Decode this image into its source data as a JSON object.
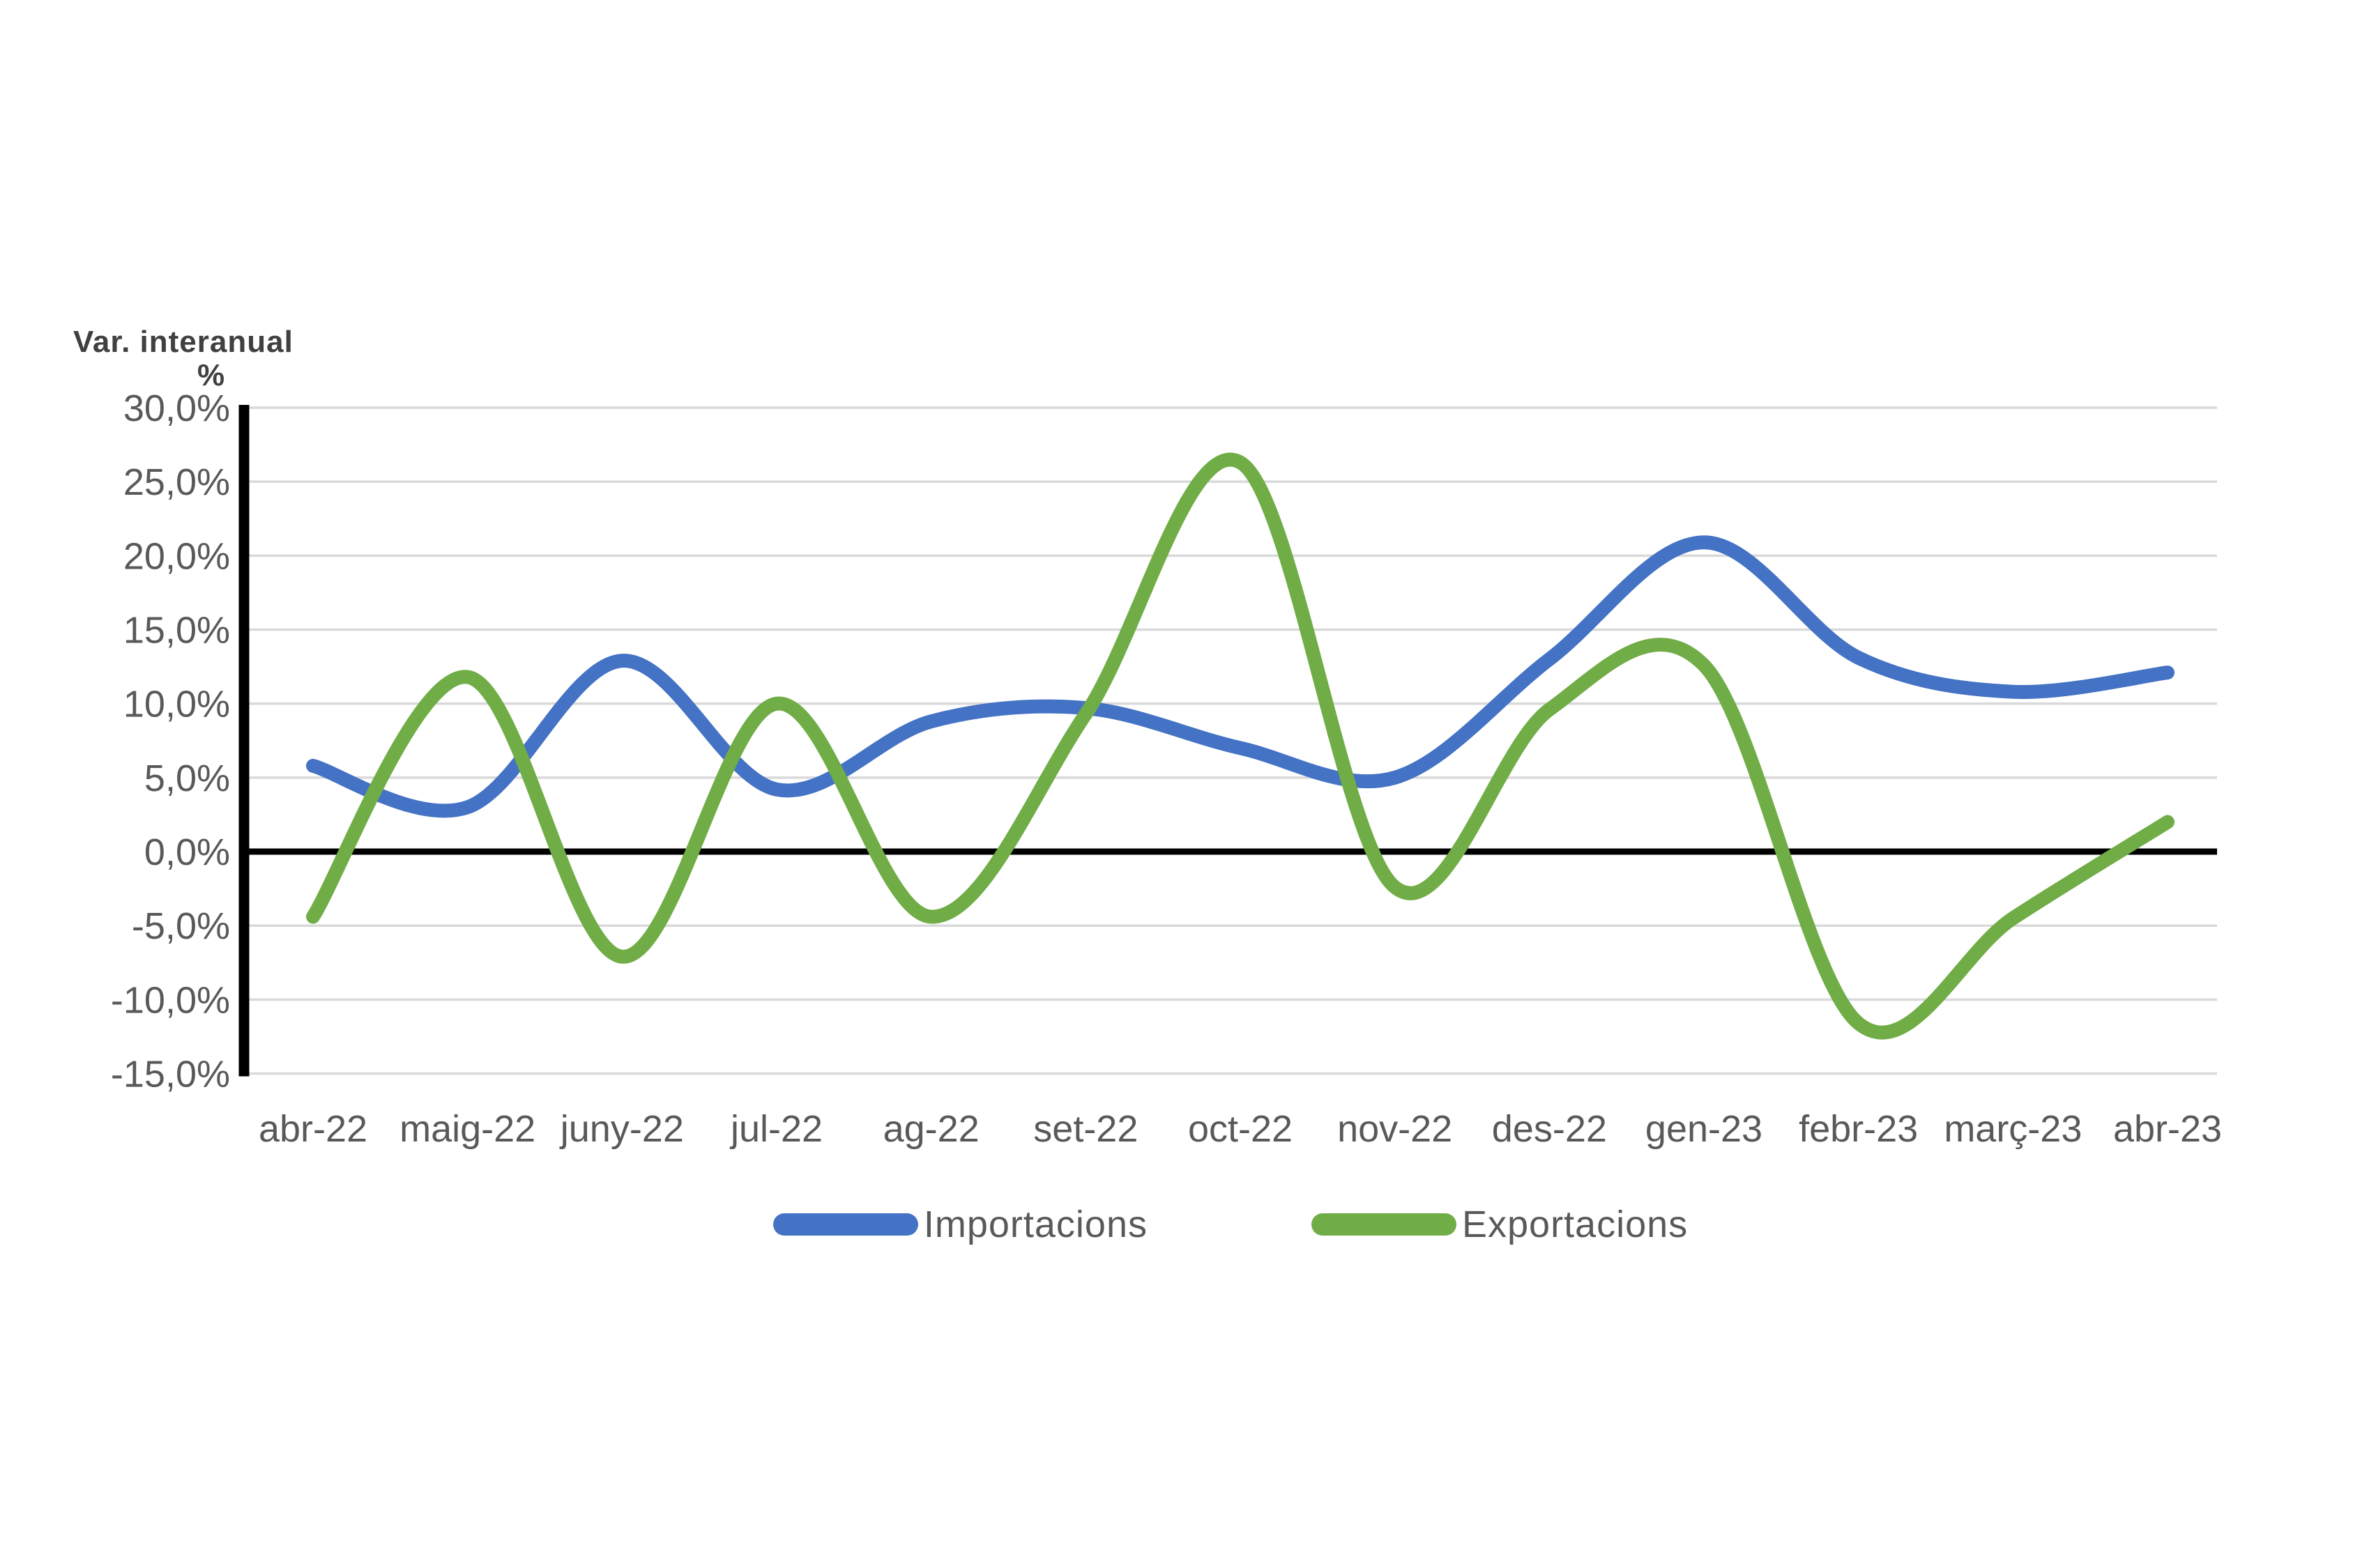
{
  "chart_data": {
    "type": "line",
    "title": "Var. interanual",
    "unit_label": "%",
    "categories": [
      "abr-22",
      "maig-22",
      "juny-22",
      "jul-22",
      "ag-22",
      "set-22",
      "oct-22",
      "nov-22",
      "des-22",
      "gen-23",
      "febr-23",
      "març-23",
      "abr-23"
    ],
    "series": [
      {
        "name": "Importacions",
        "color": "#4472C4",
        "values": [
          5.8,
          3.0,
          12.9,
          4.2,
          8.8,
          9.7,
          7.0,
          5.0,
          13.0,
          20.9,
          13.1,
          10.8,
          12.1
        ]
      },
      {
        "name": "Exportacions",
        "color": "#70AD47",
        "values": [
          -4.4,
          11.8,
          -7.1,
          10.0,
          -4.4,
          9.3,
          26.3,
          -2.4,
          9.6,
          12.6,
          -11.6,
          -4.5,
          2.0
        ]
      }
    ],
    "y_axis": {
      "min": -15,
      "max": 30,
      "step": 5,
      "tick_labels": [
        "30,0%",
        "25,0%",
        "20,0%",
        "15,0%",
        "10,0%",
        "5,0%",
        "0,0%",
        "-5,0%",
        "-10,0%",
        "-15,0%"
      ]
    },
    "xlabel": "",
    "ylabel": "Var. interanual %",
    "ylim": [
      -15,
      30
    ],
    "grid": true,
    "smooth_lines": true,
    "legend_position": "bottom",
    "colors": {
      "gridline": "#D9D9D9",
      "zero_line": "#000000",
      "y_axis_line": "#000000",
      "tick_text": "#595959",
      "title_text": "#404040",
      "background": "#FFFFFF"
    }
  }
}
